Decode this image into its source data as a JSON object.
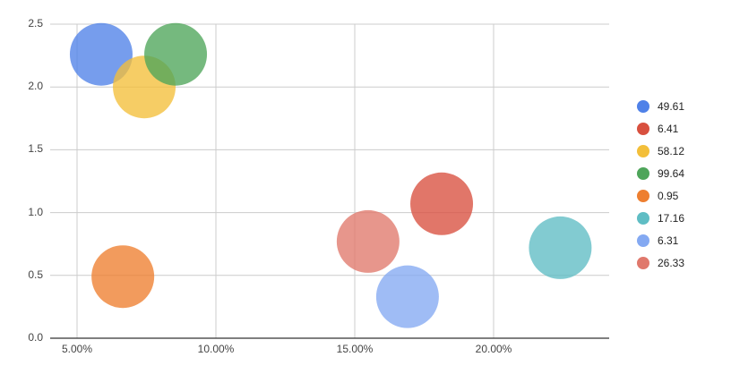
{
  "chart_data": {
    "type": "scatter",
    "subtype": "bubble",
    "title": "",
    "xlabel": "",
    "ylabel": "",
    "xlim": [
      4.0,
      24.2
    ],
    "ylim": [
      0.0,
      2.5
    ],
    "x_ticks": [
      "5.00%",
      "10.00%",
      "15.00%",
      "20.00%"
    ],
    "x_tick_values": [
      5,
      10,
      15,
      20
    ],
    "y_ticks": [
      "0.0",
      "0.5",
      "1.0",
      "1.5",
      "2.0",
      "2.5"
    ],
    "y_tick_values": [
      0,
      0.5,
      1.0,
      1.5,
      2.0,
      2.5
    ],
    "grid": true,
    "legend_position": "right",
    "series": [
      {
        "name": "49.61",
        "color": "#4f81e8",
        "x": 5.87,
        "y": 2.26
      },
      {
        "name": "6.41",
        "color": "#d8503f",
        "x": 18.13,
        "y": 1.07
      },
      {
        "name": "58.12",
        "color": "#f3bf3a",
        "x": 7.42,
        "y": 2.0
      },
      {
        "name": "99.64",
        "color": "#4ea55a",
        "x": 8.55,
        "y": 2.26
      },
      {
        "name": "0.95",
        "color": "#ee7f30",
        "x": 6.65,
        "y": 0.49
      },
      {
        "name": "17.16",
        "color": "#5fbdc4",
        "x": 22.4,
        "y": 0.72
      },
      {
        "name": "6.31",
        "color": "#84a9f2",
        "x": 16.9,
        "y": 0.33
      },
      {
        "name": "26.33",
        "color": "#e0786c",
        "x": 15.48,
        "y": 0.77
      }
    ]
  }
}
